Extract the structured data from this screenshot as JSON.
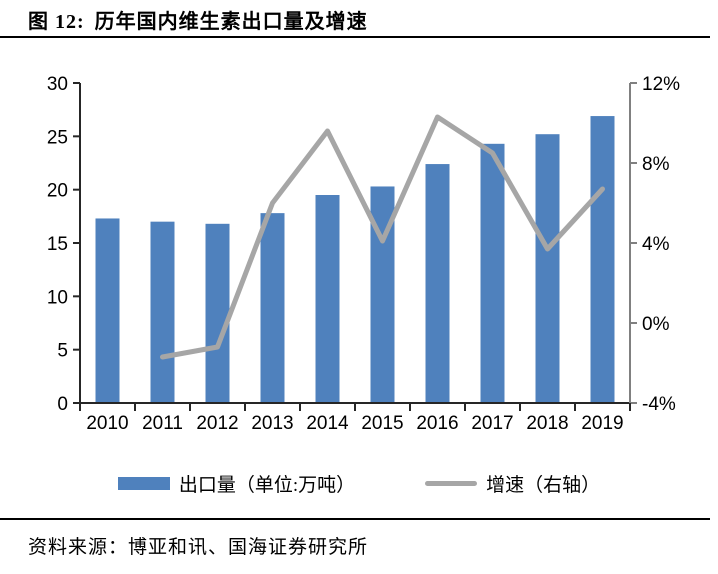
{
  "title": {
    "label": "图 12:",
    "text": "历年国内维生素出口量及增速"
  },
  "legend": {
    "bars": "出口量（单位:万吨）",
    "line": "增速（右轴）"
  },
  "source": "资料来源：博亚和讯、国海证券研究所",
  "colors": {
    "bar": "#4F81BD",
    "line": "#A6A6A6",
    "axis_primary": "#262626",
    "axis_secondary": "#808080",
    "text": "#000000"
  },
  "chart_data": {
    "type": "bar",
    "subtype": "bar+line combo",
    "categories": [
      "2010",
      "2011",
      "2012",
      "2013",
      "2014",
      "2015",
      "2016",
      "2017",
      "2018",
      "2019"
    ],
    "series": [
      {
        "name": "出口量（单位:万吨）",
        "type": "bar",
        "axis": "left",
        "color": "#4F81BD",
        "values": [
          17.3,
          17.0,
          16.8,
          17.8,
          19.5,
          20.3,
          22.4,
          24.3,
          25.2,
          26.9
        ]
      },
      {
        "name": "增速（右轴）",
        "type": "line",
        "axis": "right",
        "color": "#A6A6A6",
        "values": [
          null,
          -1.7,
          -1.2,
          6.0,
          9.6,
          4.1,
          10.3,
          8.5,
          3.7,
          6.7
        ]
      }
    ],
    "left_axis": {
      "min": 0,
      "max": 30,
      "ticks": [
        0,
        5,
        10,
        15,
        20,
        25,
        30
      ]
    },
    "right_axis": {
      "min": -4,
      "max": 12,
      "ticks": [
        -4,
        0,
        4,
        8,
        12
      ],
      "unit": "%"
    },
    "grid": false,
    "legend_position": "bottom"
  }
}
